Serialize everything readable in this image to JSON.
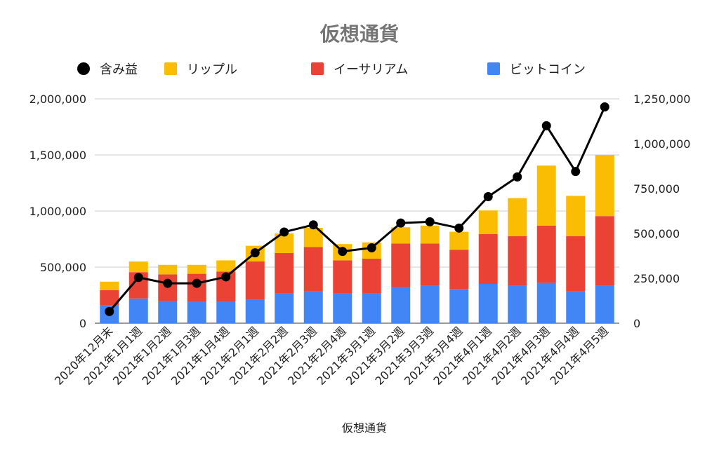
{
  "chart_data": {
    "type": "bar",
    "stacked": true,
    "title": "仮想通貨",
    "xlabel": "仮想通貨",
    "categories": [
      "2020年12月末",
      "2021年1月1週",
      "2021年1月2週",
      "2021年1月3週",
      "2021年1月4週",
      "2021年2月1週",
      "2021年2月2週",
      "2021年2月3週",
      "2021年2月4週",
      "2021年3月1週",
      "2021年3月2週",
      "2021年3月3週",
      "2021年3月4週",
      "2021年4月1週",
      "2021年4月2週",
      "2021年4月3週",
      "2021年4月4週",
      "2021年4月5週"
    ],
    "series": [
      {
        "name": "ビットコイン",
        "type": "bar",
        "axis": "left",
        "color": "#4285F4",
        "values": [
          160000,
          220000,
          200000,
          190000,
          190000,
          210000,
          265000,
          285000,
          265000,
          265000,
          325000,
          335000,
          305000,
          350000,
          335000,
          360000,
          285000,
          335000
        ]
      },
      {
        "name": "イーサリアム",
        "type": "bar",
        "axis": "left",
        "color": "#EA4335",
        "values": [
          135000,
          235000,
          235000,
          250000,
          270000,
          340000,
          360000,
          395000,
          295000,
          310000,
          385000,
          375000,
          350000,
          445000,
          440000,
          510000,
          490000,
          620000
        ]
      },
      {
        "name": "リップル",
        "type": "bar",
        "axis": "left",
        "color": "#FBBC04",
        "values": [
          75000,
          95000,
          85000,
          80000,
          100000,
          140000,
          175000,
          170000,
          145000,
          145000,
          145000,
          160000,
          160000,
          210000,
          340000,
          535000,
          360000,
          545000
        ]
      },
      {
        "name": "含み益",
        "type": "line",
        "axis": "right",
        "color": "#000000",
        "values": [
          65000,
          255000,
          222000,
          222000,
          258000,
          392000,
          508000,
          548000,
          400000,
          420000,
          558000,
          565000,
          530000,
          705000,
          815000,
          1100000,
          845000,
          1205000
        ]
      }
    ],
    "legend_order": [
      "含み益",
      "リップル",
      "イーサリアム",
      "ビットコイン"
    ],
    "legend_position": "top",
    "y_left": {
      "min": 0,
      "max": 2000000,
      "ticks": [
        0,
        500000,
        1000000,
        1500000,
        2000000
      ],
      "tick_labels": [
        "0",
        "500,000",
        "1,000,000",
        "1,500,000",
        "2,000,000"
      ]
    },
    "y_right": {
      "min": 0,
      "max": 1250000,
      "ticks": [
        0,
        250000,
        500000,
        750000,
        1000000,
        1250000
      ],
      "tick_labels": [
        "0",
        "250,000",
        "500,000",
        "750,000",
        "1,000,000",
        "1,250,000"
      ]
    },
    "grid": true
  },
  "colors": {
    "title": "#757575",
    "axis_text": "#222222",
    "grid": "#cccccc",
    "baseline": "#333333"
  }
}
